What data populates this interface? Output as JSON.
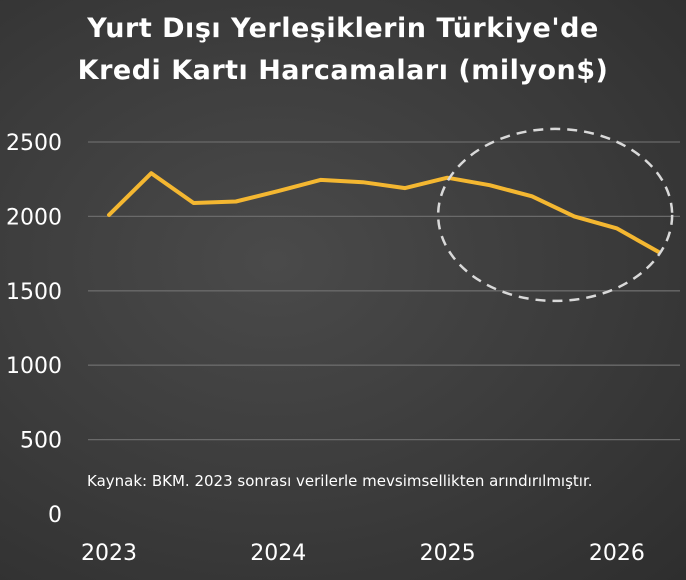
{
  "chart_data": {
    "type": "line",
    "title_line1": "Yurt Dışı Yerleşiklerin Türkiye'de",
    "title_line2": "Kredi Kartı Harcamaları (milyon$)",
    "xlabel": "",
    "ylabel": "",
    "ylim": [
      0,
      2500
    ],
    "y_ticks": [
      "2500",
      "2000",
      "1500",
      "1000",
      "500",
      "0"
    ],
    "x_ticks": [
      "2023",
      "2024",
      "2025",
      "2026"
    ],
    "grid": true,
    "annotation": "Kaynak: BKM. 2023 sonrası verilerle mevsimsellikten arındırılmıştır.",
    "series": [
      {
        "color": "#f4b731",
        "x": [
          "2023-Q1",
          "2023-Q2",
          "2023-Q3",
          "2023-Q4",
          "2024-Q1",
          "2024-Q2",
          "2024-Q3",
          "2024-Q4",
          "2025-Q1",
          "2025-Q2",
          "2025-Q3",
          "2025-Q4",
          "2026-Q1",
          "2026-Q2"
        ],
        "values": [
          2010,
          2290,
          2090,
          2100,
          2170,
          2245,
          2230,
          2190,
          2260,
          2210,
          2135,
          2000,
          1920,
          1760
        ]
      }
    ],
    "highlight": "dashed ellipse around the recent decline (2025-Q1 to 2026-Q2)"
  },
  "colors": {
    "background": "#3b3b3b",
    "line": "#f4b731",
    "grid": "#6a6a6a",
    "text": "#ffffff",
    "ellipse": "#d9d9d9"
  }
}
